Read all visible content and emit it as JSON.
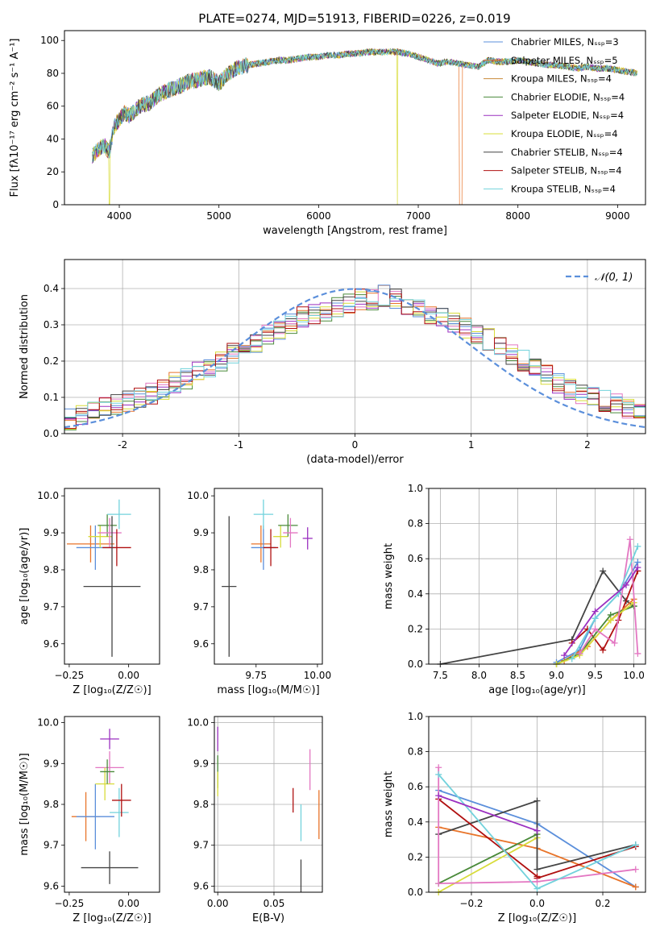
{
  "colors": [
    "#5b8fdb",
    "#e8742a",
    "#2e9f2e",
    "#c8392b",
    "#9a5fc0",
    "#8c5a4f",
    "#e377c2",
    "#7f7f7f",
    "#bcbd22",
    "#17becf"
  ],
  "chart_data": [
    {
      "type": "line",
      "title": "PLATE=0274, MJD=51913, FIBERID=0226, z=0.019",
      "xlabel": "wavelength [Angstrom, rest frame]",
      "ylabel": "Flux [fλ10⁻¹⁷ erg cm⁻² s⁻¹ A⁻¹]",
      "xlim": [
        3450,
        9280
      ],
      "ylim": [
        0,
        106
      ],
      "xticks": [
        4000,
        5000,
        6000,
        7000,
        8000,
        9000
      ],
      "yticks": [
        0,
        20,
        40,
        60,
        80,
        100
      ],
      "legend_position": "upper right",
      "x": [
        3730,
        3800,
        3850,
        3900,
        3950,
        4000,
        4050,
        4100,
        4200,
        4300,
        4400,
        4500,
        4600,
        4700,
        4800,
        4900,
        5000,
        5100,
        5200,
        5300,
        5400,
        5500,
        5600,
        5700,
        5800,
        5900,
        6000,
        6100,
        6200,
        6300,
        6400,
        6500,
        6600,
        6700,
        6800,
        6900,
        7000,
        7100,
        7200,
        7300,
        7400,
        7500,
        7600,
        7700,
        7800,
        7900,
        8000,
        8100,
        8200,
        8300,
        8400,
        8500,
        8600,
        8700,
        8800,
        8900,
        9000,
        9100,
        9200
      ],
      "y": [
        30,
        34,
        36,
        32,
        48,
        52,
        56,
        54,
        60,
        62,
        67,
        70,
        72,
        75,
        76,
        78,
        74,
        80,
        84,
        85,
        86,
        87,
        88,
        88,
        89,
        90,
        90,
        91,
        91,
        92,
        92,
        93,
        93,
        93,
        93,
        92,
        90,
        88,
        86,
        87,
        86,
        85,
        84,
        88,
        87,
        87,
        88,
        87,
        86,
        85,
        85,
        84,
        83,
        84,
        83,
        83,
        82,
        81,
        80
      ],
      "series": [
        {
          "name": "Chabrier MILES, N_SSP=3",
          "color": "#5b8fdb"
        },
        {
          "name": "Salpeter MILES, N_SSP=5",
          "color": "#e8742a"
        },
        {
          "name": "Kroupa MILES, N_SSP=4",
          "color": "#c98a3a"
        },
        {
          "name": "Chabrier ELODIE, N_SSP=4",
          "color": "#4a8a3a"
        },
        {
          "name": "Salpeter ELODIE, N_SSP=4",
          "color": "#9b30c0"
        },
        {
          "name": "Kroupa ELODIE, N_SSP=4",
          "color": "#d8dc3a"
        },
        {
          "name": "Chabrier STELIB, N_SSP=4",
          "color": "#444444"
        },
        {
          "name": "Salpeter STELIB, N_SSP=4",
          "color": "#b01010"
        },
        {
          "name": "Kroupa STELIB, N_SSP=4",
          "color": "#72d2dc"
        }
      ]
    },
    {
      "type": "bar",
      "xlabel": "(data-model)/error",
      "ylabel": "Normed distribution",
      "xlim": [
        -2.5,
        2.5
      ],
      "ylim": [
        0,
        0.48
      ],
      "xticks": [
        -2,
        -1,
        0,
        1,
        2
      ],
      "yticks": [
        0.0,
        0.1,
        0.2,
        0.3,
        0.4
      ],
      "gaussian_label": "𝒩(0, 1)",
      "bin_width": 0.1,
      "bin_start": -2.5,
      "values": [
        0.04,
        0.05,
        0.06,
        0.07,
        0.08,
        0.09,
        0.1,
        0.11,
        0.12,
        0.14,
        0.15,
        0.17,
        0.18,
        0.2,
        0.22,
        0.24,
        0.25,
        0.27,
        0.29,
        0.3,
        0.32,
        0.33,
        0.34,
        0.35,
        0.36,
        0.37,
        0.37,
        0.38,
        0.37,
        0.35,
        0.34,
        0.33,
        0.32,
        0.31,
        0.29,
        0.27,
        0.26,
        0.24,
        0.22,
        0.2,
        0.18,
        0.16,
        0.14,
        0.12,
        0.11,
        0.1,
        0.09,
        0.08,
        0.07,
        0.06
      ]
    },
    {
      "type": "scatter",
      "xlabel": "Z [log₁₀(Z/Z☉)]",
      "ylabel": "age  [log₁₀(age/yr)]",
      "xlim": [
        -0.27,
        0.13
      ],
      "ylim": [
        9.545,
        10.02
      ],
      "xticks": [
        -0.25,
        0.0
      ],
      "yticks": [
        9.6,
        9.7,
        9.8,
        9.9,
        10.0
      ],
      "points": [
        {
          "x": -0.16,
          "y": 9.87,
          "ex": 0.1,
          "ey": 0.05,
          "color": "#e8742a"
        },
        {
          "x": -0.14,
          "y": 9.86,
          "ex": 0.08,
          "ey": 0.06,
          "color": "#5b8fdb"
        },
        {
          "x": -0.12,
          "y": 9.89,
          "ex": 0.05,
          "ey": 0.03,
          "color": "#d8dc3a"
        },
        {
          "x": -0.09,
          "y": 9.92,
          "ex": 0.04,
          "ey": 0.03,
          "color": "#4a8a3a"
        },
        {
          "x": -0.08,
          "y": 9.9,
          "ex": 0.05,
          "ey": 0.04,
          "color": "#e377c2"
        },
        {
          "x": -0.04,
          "y": 9.95,
          "ex": 0.05,
          "ey": 0.04,
          "color": "#72d2dc"
        },
        {
          "x": -0.05,
          "y": 9.86,
          "ex": 0.06,
          "ey": 0.05,
          "color": "#b01010"
        },
        {
          "x": -0.07,
          "y": 9.755,
          "ex": 0.12,
          "ey": 0.19,
          "color": "#444444"
        }
      ]
    },
    {
      "type": "scatter",
      "xlabel": "mass [log₁₀(M/M☉)]",
      "ylabel": "",
      "xlim": [
        9.58,
        10.02
      ],
      "ylim": [
        9.545,
        10.02
      ],
      "xticks": [
        9.75,
        10.0
      ],
      "yticks": [
        9.6,
        9.7,
        9.8,
        9.9,
        10.0
      ],
      "points": [
        {
          "x": 9.77,
          "y": 9.87,
          "ex": 0.04,
          "ey": 0.05,
          "color": "#e8742a"
        },
        {
          "x": 9.78,
          "y": 9.86,
          "ex": 0.05,
          "ey": 0.06,
          "color": "#5b8fdb"
        },
        {
          "x": 9.85,
          "y": 9.89,
          "ex": 0.03,
          "ey": 0.03,
          "color": "#d8dc3a"
        },
        {
          "x": 9.88,
          "y": 9.92,
          "ex": 0.04,
          "ey": 0.03,
          "color": "#4a8a3a"
        },
        {
          "x": 9.89,
          "y": 9.9,
          "ex": 0.03,
          "ey": 0.04,
          "color": "#e377c2"
        },
        {
          "x": 9.78,
          "y": 9.95,
          "ex": 0.04,
          "ey": 0.04,
          "color": "#72d2dc"
        },
        {
          "x": 9.81,
          "y": 9.86,
          "ex": 0.03,
          "ey": 0.05,
          "color": "#b01010"
        },
        {
          "x": 9.96,
          "y": 9.885,
          "ex": 0.02,
          "ey": 0.03,
          "color": "#9b30c0"
        },
        {
          "x": 9.64,
          "y": 9.755,
          "ex": 0.03,
          "ey": 0.19,
          "color": "#444444"
        }
      ]
    },
    {
      "type": "line",
      "xlabel": "age  [log₁₀(age/yr)]",
      "ylabel": "mass weight",
      "xlim": [
        7.35,
        10.15
      ],
      "ylim": [
        0,
        1.0
      ],
      "xticks": [
        7.5,
        8.0,
        8.5,
        9.0,
        9.5,
        10.0
      ],
      "yticks": [
        0.0,
        0.2,
        0.4,
        0.6,
        0.8,
        1.0
      ],
      "series": [
        {
          "color": "#444444",
          "x": [
            7.5,
            9.2,
            9.6,
            9.9,
            10.0
          ],
          "y": [
            0.0,
            0.14,
            0.53,
            0.36,
            0.33
          ]
        },
        {
          "color": "#b01010",
          "x": [
            9.2,
            9.4,
            9.6,
            9.8,
            10.05
          ],
          "y": [
            0.12,
            0.2,
            0.08,
            0.25,
            0.53
          ]
        },
        {
          "color": "#5b8fdb",
          "x": [
            9.0,
            9.3,
            9.5,
            9.8,
            10.05
          ],
          "y": [
            0.01,
            0.08,
            0.26,
            0.4,
            0.58
          ]
        },
        {
          "color": "#e8742a",
          "x": [
            9.1,
            9.4,
            9.7,
            10.0
          ],
          "y": [
            0.02,
            0.1,
            0.25,
            0.37
          ]
        },
        {
          "color": "#4a8a3a",
          "x": [
            9.0,
            9.3,
            9.7,
            10.0
          ],
          "y": [
            0.0,
            0.06,
            0.28,
            0.33
          ]
        },
        {
          "color": "#d8dc3a",
          "x": [
            9.0,
            9.3,
            9.7,
            10.0
          ],
          "y": [
            0.0,
            0.05,
            0.25,
            0.35
          ]
        },
        {
          "color": "#e377c2",
          "x": [
            9.3,
            9.5,
            9.75,
            9.95,
            10.05
          ],
          "y": [
            0.06,
            0.2,
            0.12,
            0.71,
            0.06
          ]
        },
        {
          "color": "#72d2dc",
          "x": [
            9.2,
            9.5,
            9.8,
            10.05
          ],
          "y": [
            0.03,
            0.26,
            0.4,
            0.67
          ]
        },
        {
          "color": "#9b30c0",
          "x": [
            9.1,
            9.5,
            9.9,
            10.05
          ],
          "y": [
            0.05,
            0.3,
            0.45,
            0.55
          ]
        }
      ]
    },
    {
      "type": "scatter",
      "xlabel": "Z [log₁₀(Z/Z☉)]",
      "ylabel": "mass [log₁₀(M/M☉)]",
      "xlim": [
        -0.27,
        0.13
      ],
      "ylim": [
        9.585,
        10.015
      ],
      "xticks": [
        -0.25,
        0.0
      ],
      "yticks": [
        9.6,
        9.7,
        9.8,
        9.9,
        10.0
      ],
      "points": [
        {
          "x": -0.18,
          "y": 9.77,
          "ex": 0.06,
          "ey": 0.06,
          "color": "#e8742a"
        },
        {
          "x": -0.14,
          "y": 9.77,
          "ex": 0.08,
          "ey": 0.08,
          "color": "#5b8fdb"
        },
        {
          "x": -0.08,
          "y": 9.89,
          "ex": 0.06,
          "ey": 0.04,
          "color": "#e377c2"
        },
        {
          "x": -0.1,
          "y": 9.85,
          "ex": 0.04,
          "ey": 0.04,
          "color": "#d8dc3a"
        },
        {
          "x": -0.09,
          "y": 9.88,
          "ex": 0.03,
          "ey": 0.03,
          "color": "#4a8a3a"
        },
        {
          "x": -0.08,
          "y": 9.96,
          "ex": 0.04,
          "ey": 0.025,
          "color": "#9b30c0"
        },
        {
          "x": -0.04,
          "y": 9.78,
          "ex": 0.04,
          "ey": 0.06,
          "color": "#72d2dc"
        },
        {
          "x": -0.03,
          "y": 9.81,
          "ex": 0.04,
          "ey": 0.04,
          "color": "#b01010"
        },
        {
          "x": -0.08,
          "y": 9.645,
          "ex": 0.12,
          "ey": 0.04,
          "color": "#444444"
        }
      ]
    },
    {
      "type": "scatter",
      "xlabel": "E(B-V)",
      "ylabel": "",
      "xlim": [
        -0.003,
        0.093
      ],
      "ylim": [
        9.585,
        10.015
      ],
      "xticks": [
        0.0,
        0.05
      ],
      "yticks": [
        9.6,
        9.7,
        9.8,
        9.9,
        10.0
      ],
      "points": [
        {
          "x": 0.0,
          "y": 9.96,
          "ex": 0.0,
          "ey": 0.03,
          "color": "#9b30c0"
        },
        {
          "x": 0.0,
          "y": 9.88,
          "ex": 0.0,
          "ey": 0.04,
          "color": "#4a8a3a"
        },
        {
          "x": 0.0,
          "y": 9.85,
          "ex": 0.0,
          "ey": 0.03,
          "color": "#d8dc3a"
        },
        {
          "x": 0.067,
          "y": 9.81,
          "ex": 0.0,
          "ey": 0.03,
          "color": "#b01010"
        },
        {
          "x": 0.074,
          "y": 9.755,
          "ex": 0.0,
          "ey": 0.045,
          "color": "#72d2dc"
        },
        {
          "x": 0.074,
          "y": 9.625,
          "ex": 0.0,
          "ey": 0.04,
          "color": "#444444"
        },
        {
          "x": 0.082,
          "y": 9.885,
          "ex": 0.0,
          "ey": 0.05,
          "color": "#e377c2"
        },
        {
          "x": 0.09,
          "y": 9.775,
          "ex": 0.0,
          "ey": 0.06,
          "color": "#e8742a"
        }
      ]
    },
    {
      "type": "line",
      "xlabel": "Z [log₁₀(Z/Z☉)]",
      "ylabel": "mass weight",
      "xlim": [
        -0.33,
        0.33
      ],
      "ylim": [
        0,
        1.0
      ],
      "xticks": [
        -0.2,
        0.0,
        0.2
      ],
      "yticks": [
        0.0,
        0.2,
        0.4,
        0.6,
        0.8,
        1.0
      ],
      "series": [
        {
          "color": "#5b8fdb",
          "x": [
            -0.3,
            0.0,
            0.3
          ],
          "y": [
            0.58,
            0.39,
            0.03
          ]
        },
        {
          "color": "#e8742a",
          "x": [
            -0.3,
            0.0,
            0.3
          ],
          "y": [
            0.37,
            0.25,
            0.03
          ]
        },
        {
          "color": "#4a8a3a",
          "x": [
            -0.3,
            0.0
          ],
          "y": [
            0.05,
            0.33
          ]
        },
        {
          "color": "#d8dc3a",
          "x": [
            -0.3,
            0.0
          ],
          "y": [
            0.0,
            0.31
          ]
        },
        {
          "color": "#444444",
          "x": [
            -0.3,
            0.0,
            0.0,
            0.3
          ],
          "y": [
            0.33,
            0.52,
            0.13,
            0.27
          ]
        },
        {
          "color": "#b01010",
          "x": [
            -0.3,
            0.0,
            0.0,
            0.3
          ],
          "y": [
            0.53,
            0.09,
            0.08,
            0.26
          ]
        },
        {
          "color": "#e377c2",
          "x": [
            -0.3,
            -0.3,
            0.0,
            0.3
          ],
          "y": [
            0.71,
            0.05,
            0.06,
            0.13
          ]
        },
        {
          "color": "#72d2dc",
          "x": [
            -0.3,
            0.0,
            0.3
          ],
          "y": [
            0.67,
            0.02,
            0.27
          ]
        },
        {
          "color": "#9b30c0",
          "x": [
            -0.3,
            0.0
          ],
          "y": [
            0.55,
            0.35
          ]
        }
      ]
    }
  ]
}
